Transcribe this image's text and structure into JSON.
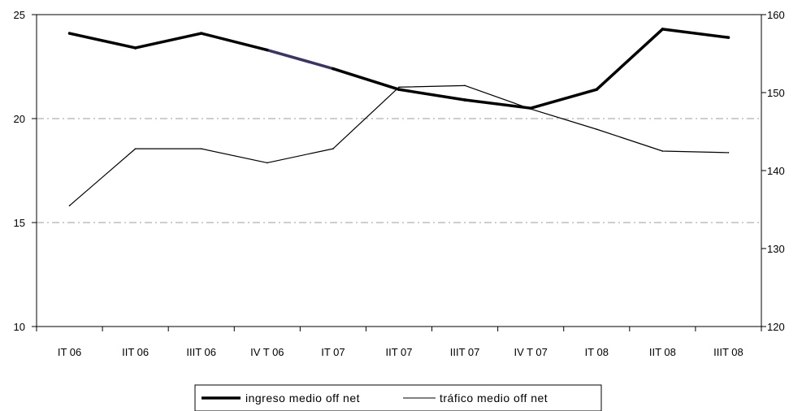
{
  "chart_data": {
    "type": "line",
    "title": "",
    "categories": [
      "IT 06",
      "IIT 06",
      "IIIT 06",
      "IV T 06",
      "IT 07",
      "IIT 07",
      "IIIT 07",
      "IV T 07",
      "IT 08",
      "IIT 08",
      "IIIT 08"
    ],
    "series": [
      {
        "name": "ingreso medio off net",
        "axis": "left",
        "color": "#000000",
        "highlight_color": "#3b3466",
        "values": [
          24.1,
          23.4,
          24.1,
          23.3,
          22.4,
          21.4,
          20.9,
          20.5,
          21.4,
          24.3,
          23.9
        ]
      },
      {
        "name": "tráfico medio off net",
        "axis": "right",
        "color": "#000000",
        "values": [
          135.5,
          142.8,
          142.8,
          141.0,
          142.8,
          150.7,
          150.9,
          147.9,
          145.3,
          142.5,
          142.3
        ]
      }
    ],
    "y_left": {
      "min": 10,
      "max": 25,
      "ticks": [
        "10",
        "15",
        "20",
        "25"
      ]
    },
    "y_right": {
      "min": 120,
      "max": 160,
      "ticks": [
        "120",
        "130",
        "140",
        "150",
        "160"
      ]
    },
    "grid": {
      "horizontal_dashed": [
        15,
        20
      ],
      "style": "dash-dot",
      "color": "#b0b0b0"
    },
    "legend_position": "bottom"
  }
}
